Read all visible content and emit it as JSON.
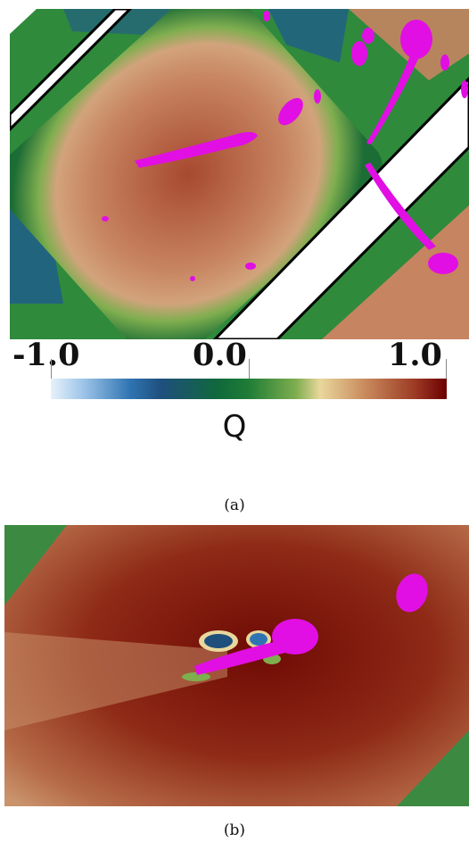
{
  "colorbar": {
    "ticks": [
      "-1.0",
      "0.0",
      "1.0"
    ],
    "title": "Q",
    "stops": [
      "#e7f1fb",
      "#2f74b2",
      "#10683c",
      "#7fae4f",
      "#e9d79c",
      "#9c3a24",
      "#6b0000"
    ]
  },
  "captions": {
    "a": "(a)",
    "b": "(b)"
  },
  "colors": {
    "isosurface": "#e10fe3",
    "channel_wall": "#000000"
  }
}
